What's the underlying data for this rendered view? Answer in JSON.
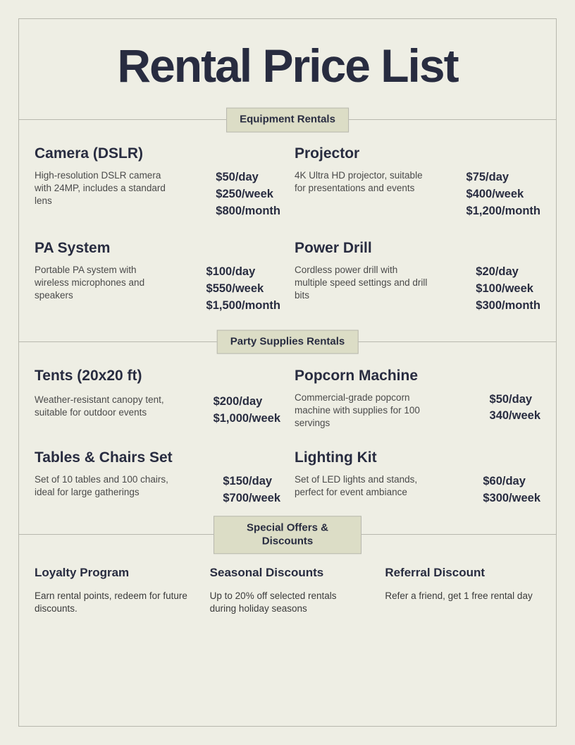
{
  "title": "Rental Price List",
  "sections": [
    {
      "label": "Equipment Rentals"
    },
    {
      "label": "Party Supplies Rentals"
    },
    {
      "label": "Special Offers & Discounts"
    }
  ],
  "equipment": [
    {
      "name": "Camera (DSLR)",
      "desc": "High-resolution DSLR camera with 24MP, includes a standard lens",
      "p1": "$50/day",
      "p2": "$250/week",
      "p3": "$800/month"
    },
    {
      "name": "Projector",
      "desc": "4K Ultra HD projector, suitable for presentations and events",
      "p1": "$75/day",
      "p2": "$400/week",
      "p3": "$1,200/month"
    },
    {
      "name": "PA System",
      "desc": "Portable PA system with wireless microphones and speakers",
      "p1": "$100/day",
      "p2": "$550/week",
      "p3": "$1,500/month"
    },
    {
      "name": "Power Drill",
      "desc": "Cordless power drill with multiple speed settings and drill bits",
      "p1": "$20/day",
      "p2": "$100/week",
      "p3": "$300/month"
    }
  ],
  "party": [
    {
      "name": "Tents (20x20 ft)",
      "desc": "Weather-resistant canopy tent, suitable for outdoor events",
      "p1": "$200/day",
      "p2": "$1,000/week"
    },
    {
      "name": "Popcorn Machine",
      "desc": "Commercial-grade popcorn machine with supplies for 100 servings",
      "p1": "$50/day",
      "p2": "340/week"
    },
    {
      "name": "Tables & Chairs Set",
      "desc": "Set of 10 tables and 100 chairs, ideal for large gatherings",
      "p1": "$150/day",
      "p2": "$700/week"
    },
    {
      "name": "Lighting Kit",
      "desc": "Set of LED lights and stands, perfect for event ambiance",
      "p1": "$60/day",
      "p2": "$300/week"
    }
  ],
  "offers": [
    {
      "name": "Loyalty Program",
      "desc": "Earn rental points, redeem for future discounts."
    },
    {
      "name": "Seasonal Discounts",
      "desc": "Up to 20% off selected rentals during holiday seasons"
    },
    {
      "name": "Referral Discount",
      "desc": "Refer a friend, get 1 free rental day"
    }
  ],
  "colors": {
    "background": "#eeeee4",
    "border": "#b8b8ae",
    "label_bg": "#dcddc6",
    "text": "#282c40"
  }
}
